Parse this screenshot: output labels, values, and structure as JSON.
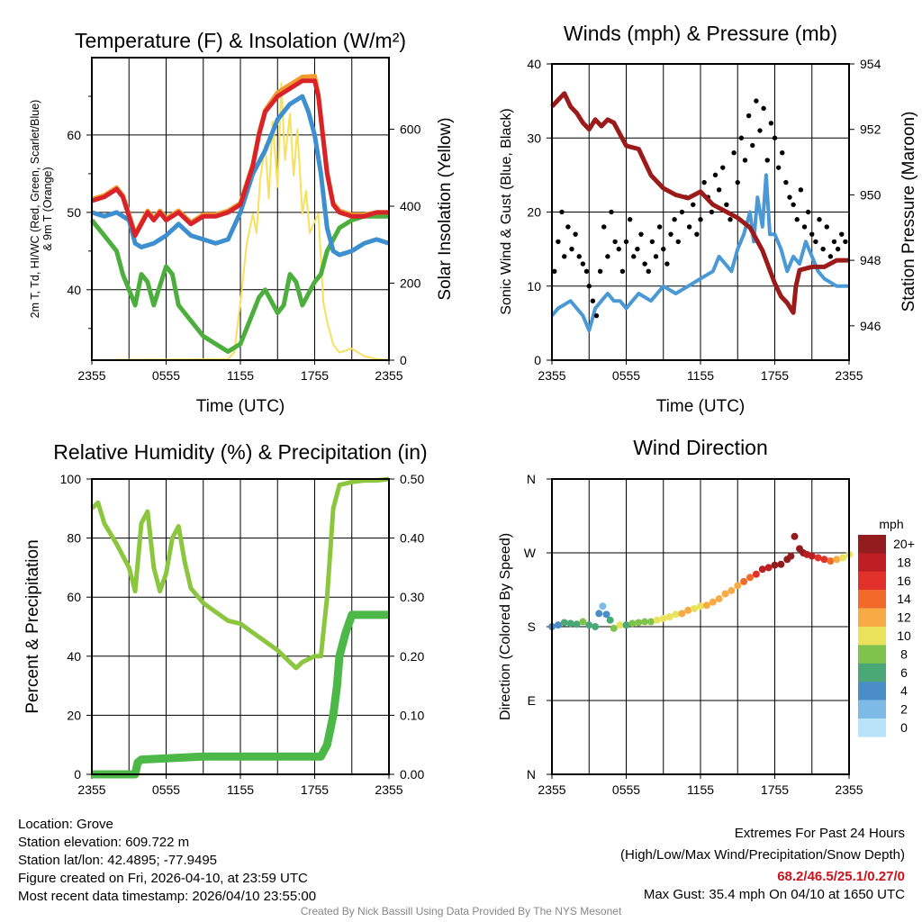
{
  "chart_data": [
    {
      "type": "line",
      "title": "Temperature (F) & Insolation (W/m²)",
      "xlabel": "Time (UTC)",
      "ylabel": "2m T, Td, HI/WC (Red, Green, Scarlet/Blue) & 9m T (Orange)",
      "ylabel_line1": "2m T, T",
      "ylabel_sub": "d",
      "ylabel_line1b": ", HI/WC (Red, Green, Scarlet/Blue)",
      "ylabel_line2": "& 9m T (Orange)",
      "y2label": "Solar Insolation (Yellow)",
      "ylim": [
        30.9,
        70
      ],
      "y2lim": [
        0,
        786
      ],
      "xticks": [
        "2355",
        "0555",
        "1155",
        "1755",
        "2355"
      ],
      "yticks": [
        40,
        50,
        60
      ],
      "y2ticks": [
        0,
        200,
        400,
        600
      ],
      "series": [
        {
          "name": "Solar Insolation",
          "axis": "right",
          "color": "#f7e05a",
          "x": [
            0,
            11,
            11.5,
            12,
            12.5,
            13,
            13.3,
            13.6,
            14,
            14.3,
            14.6,
            15,
            15.3,
            15.6,
            16,
            16.3,
            16.6,
            17,
            17.3,
            17.6,
            18,
            18.3,
            18.7,
            19,
            19.5,
            20,
            21,
            22,
            23,
            24
          ],
          "y": [
            0,
            3,
            20,
            150,
            300,
            380,
            330,
            470,
            560,
            420,
            620,
            450,
            720,
            520,
            640,
            480,
            600,
            380,
            440,
            330,
            360,
            380,
            150,
            100,
            40,
            20,
            30,
            10,
            3,
            0
          ]
        },
        {
          "name": "Dew Point",
          "axis": "left",
          "color": "#4cae3c",
          "x": [
            0,
            1,
            2,
            2.5,
            3,
            3.5,
            4,
            4.5,
            5,
            5.5,
            6,
            6.5,
            7,
            8,
            9,
            10,
            11,
            11.5,
            12,
            13,
            13.5,
            14,
            15,
            15.5,
            16,
            16.5,
            17,
            18,
            18.5,
            19,
            20,
            21,
            22,
            23,
            24
          ],
          "y": [
            49,
            47,
            45,
            42,
            40,
            38,
            42,
            41,
            38,
            40.5,
            43,
            42,
            38,
            36,
            34,
            33,
            32,
            32.5,
            33,
            37,
            39,
            40,
            37,
            38,
            42,
            41,
            38,
            41,
            42,
            45,
            48,
            49,
            49.5,
            49.5,
            49.5
          ]
        },
        {
          "name": "9m Temperature",
          "axis": "left",
          "color": "#f39a2c",
          "x": [
            0,
            1,
            1.5,
            2,
            2.5,
            3,
            3.5,
            4,
            4.5,
            5,
            5.5,
            6,
            7,
            8,
            9,
            10,
            11,
            12,
            13,
            13.5,
            14,
            15,
            16,
            17,
            18,
            18.3,
            19,
            19.5,
            20,
            21,
            22,
            23,
            24
          ],
          "y": [
            51.7,
            52.2,
            52.7,
            53.2,
            52.2,
            49.7,
            47.2,
            48.7,
            50.2,
            49.2,
            50.2,
            49.2,
            50.2,
            48.7,
            49.7,
            49.7,
            50.2,
            51.2,
            56.2,
            60.2,
            63.2,
            65.5,
            66.5,
            67.5,
            67.6,
            65.2,
            55.2,
            51.2,
            50.2,
            49.7,
            49.7,
            50,
            50
          ]
        },
        {
          "name": "Heat Index/Wind Chill",
          "axis": "left",
          "color": "#3d8fd0",
          "x": [
            0,
            1,
            2,
            3,
            3.5,
            4,
            5,
            6,
            7,
            8,
            9,
            10,
            11,
            12,
            13,
            14,
            15,
            16,
            17,
            17.5,
            18,
            18.5,
            19,
            19.5,
            20,
            21,
            22,
            23,
            24
          ],
          "y": [
            50,
            49.5,
            50,
            49,
            46,
            45.5,
            46,
            47,
            48.5,
            47,
            46.5,
            46,
            46.5,
            50,
            55,
            58,
            62,
            64,
            65,
            63,
            60,
            55,
            48,
            45,
            44.5,
            45,
            46,
            46.5,
            46
          ]
        },
        {
          "name": "2m Temperature",
          "axis": "left",
          "color": "#d8232a",
          "x": [
            0,
            1,
            1.5,
            2,
            2.5,
            3,
            3.5,
            4,
            4.5,
            5,
            5.5,
            6,
            7,
            8,
            9,
            10,
            11,
            12,
            13,
            13.5,
            14,
            15,
            16,
            17,
            18,
            18.3,
            19,
            19.5,
            20,
            21,
            22,
            23,
            24
          ],
          "y": [
            51.5,
            52,
            52.5,
            53,
            52,
            49.5,
            47,
            48.5,
            50,
            49,
            50,
            49,
            50,
            48.5,
            49.5,
            49.5,
            50,
            51,
            56,
            60,
            63,
            65,
            66,
            67,
            67,
            65,
            55,
            51,
            50,
            49.5,
            49.5,
            50,
            50
          ]
        }
      ]
    },
    {
      "type": "line",
      "title": "Winds (mph) & Pressure (mb)",
      "xlabel": "Time (UTC)",
      "ylabel": "Sonic Wind & Gust (Blue, Black)",
      "y2label": "Station Pressure (Maroon)",
      "ylim": [
        0,
        40
      ],
      "y2lim": [
        944.95,
        954
      ],
      "xticks": [
        "2355",
        "0555",
        "1155",
        "1755",
        "2355"
      ],
      "yticks": [
        0,
        10,
        20,
        30,
        40
      ],
      "y2ticks": [
        946,
        948,
        950,
        952,
        954
      ],
      "series": [
        {
          "name": "Sonic Wind",
          "axis": "left",
          "color": "#4a98d4",
          "x": [
            0,
            0.5,
            1,
            1.5,
            2,
            2.5,
            3,
            3.5,
            4,
            4.5,
            5,
            5.5,
            6,
            6.5,
            7,
            8,
            9,
            10,
            11,
            12,
            13,
            13.5,
            14,
            14.5,
            15,
            15.5,
            16,
            16.3,
            16.6,
            17,
            17.3,
            17.6,
            18,
            18.5,
            19,
            19.5,
            20,
            20.5,
            21,
            21.5,
            22,
            23,
            24
          ],
          "y": [
            6,
            7,
            7.5,
            8,
            7,
            6,
            4,
            7,
            8,
            9,
            8,
            8,
            7,
            8,
            9,
            8,
            10,
            9,
            10,
            11,
            12,
            14,
            13,
            12,
            15,
            17,
            20,
            16,
            22,
            18,
            25,
            17,
            17,
            15,
            12,
            14,
            13,
            16,
            14,
            12,
            11,
            10,
            10
          ]
        },
        {
          "name": "Station Pressure",
          "axis": "right",
          "color": "#9b1b1b",
          "x": [
            0,
            0.5,
            1,
            1.5,
            2,
            2.5,
            3,
            3.5,
            4,
            4.5,
            5,
            6,
            7,
            8,
            9,
            10,
            11,
            12,
            13,
            14,
            15,
            16,
            17,
            18,
            18.5,
            19,
            19.5,
            19.7,
            20,
            21,
            22,
            23,
            24
          ],
          "y": [
            952.7,
            952.9,
            953.1,
            952.7,
            952.5,
            952.2,
            952,
            952.3,
            952.1,
            952.3,
            952.2,
            951.5,
            951.4,
            950.6,
            950.2,
            950,
            949.9,
            950.1,
            949.7,
            949.5,
            949.3,
            949,
            948.3,
            947.3,
            946.9,
            946.7,
            946.4,
            947.2,
            947.7,
            947.8,
            947.8,
            948,
            948
          ]
        }
      ],
      "gust_points": {
        "name": "Gust",
        "color": "#000000",
        "x": [
          0.2,
          0.5,
          0.8,
          1,
          1.3,
          1.6,
          1.9,
          2.2,
          2.5,
          2.8,
          3,
          3.3,
          3.6,
          3.9,
          4.2,
          4.5,
          4.8,
          5.1,
          5.4,
          5.7,
          6,
          6.3,
          6.6,
          6.9,
          7.2,
          7.5,
          7.8,
          8.1,
          8.4,
          8.7,
          9,
          9.3,
          9.6,
          9.9,
          10.2,
          10.5,
          10.8,
          11.1,
          11.4,
          11.7,
          12,
          12.3,
          12.6,
          12.9,
          13.2,
          13.5,
          13.8,
          14.1,
          14.4,
          14.7,
          15,
          15.3,
          15.6,
          15.9,
          16.2,
          16.5,
          16.8,
          17.1,
          17.4,
          17.7,
          18,
          18.3,
          18.6,
          18.9,
          19.2,
          19.5,
          19.8,
          20.1,
          20.4,
          20.7,
          21,
          21.3,
          21.6,
          21.9,
          22.2,
          22.5,
          22.8,
          23.1,
          23.4,
          23.7
        ],
        "y": [
          12,
          16,
          20,
          14,
          18,
          15,
          17,
          14,
          13,
          12,
          10,
          8,
          6,
          12,
          18,
          14,
          20,
          16,
          15,
          12,
          16,
          19,
          14,
          15,
          17,
          13,
          12,
          16,
          14,
          18,
          15,
          13,
          17,
          19,
          16,
          20,
          22,
          18,
          21,
          17,
          19,
          24,
          22,
          20,
          25,
          23,
          26,
          21,
          19,
          28,
          24,
          30,
          27,
          33,
          29,
          35,
          31,
          34,
          27,
          32,
          30,
          26,
          28,
          24,
          22,
          21,
          19,
          23,
          18,
          20,
          17,
          16,
          19,
          15,
          18,
          14,
          16,
          15,
          17,
          16
        ]
      }
    },
    {
      "type": "line",
      "title": "Relative Humidity (%) & Precipitation (in)",
      "xlabel": "",
      "ylabel": "Percent & Precipitation",
      "ylim": [
        0,
        100
      ],
      "y2lim": [
        0,
        0.5
      ],
      "xticks": [
        "2355",
        "0555",
        "1155",
        "1755",
        "2355"
      ],
      "yticks": [
        0,
        20,
        40,
        60,
        80,
        100
      ],
      "y2ticks": [
        "0.00",
        "0.10",
        "0.20",
        "0.30",
        "0.40",
        "0.50"
      ],
      "series": [
        {
          "name": "Relative Humidity",
          "axis": "left",
          "color": "#8cc63f",
          "x": [
            0,
            0.5,
            1,
            2,
            3,
            3.5,
            4,
            4.5,
            5,
            5.5,
            6,
            6.5,
            7,
            7.5,
            8,
            9,
            10,
            11,
            12,
            13,
            14,
            15,
            16,
            16.5,
            17,
            18,
            18.5,
            19,
            19.5,
            20,
            21,
            22,
            23,
            24
          ],
          "y": [
            90,
            92,
            85,
            78,
            70,
            62,
            85,
            89,
            70,
            62,
            68,
            80,
            84,
            72,
            63,
            58,
            55,
            52,
            51,
            48,
            45,
            42,
            38,
            36,
            38,
            40,
            40,
            60,
            90,
            98,
            99,
            99.5,
            99.5,
            100
          ]
        },
        {
          "name": "Precipitation",
          "axis": "right",
          "color": "#4cb848",
          "x": [
            0,
            3.5,
            3.7,
            4,
            6,
            9,
            18.5,
            19,
            19.5,
            19.8,
            20,
            20.5,
            21,
            24
          ],
          "y": [
            0,
            0,
            0.02,
            0.025,
            0.027,
            0.03,
            0.03,
            0.05,
            0.1,
            0.15,
            0.2,
            0.24,
            0.27,
            0.27
          ]
        }
      ]
    },
    {
      "type": "scatter",
      "title": "Wind Direction",
      "ylabel": "Direction (Colored By Speed)",
      "xticks": [
        "2355",
        "0555",
        "1155",
        "1755",
        "2355"
      ],
      "yticks": [
        {
          "label": "N",
          "deg": 0
        },
        {
          "label": "E",
          "deg": 90
        },
        {
          "label": "S",
          "deg": 180
        },
        {
          "label": "W",
          "deg": 270
        },
        {
          "label": "N",
          "deg": 360
        }
      ],
      "points": {
        "x": [
          0,
          0.5,
          1,
          1.5,
          2,
          2.5,
          3,
          3.5,
          3.8,
          4.1,
          4.4,
          4.7,
          5,
          5.5,
          6,
          6.5,
          7,
          7.5,
          8,
          8.5,
          9,
          9.5,
          10,
          10.5,
          11,
          11.5,
          12,
          12.5,
          13,
          13.5,
          14,
          14.5,
          15,
          15.5,
          16,
          16.5,
          17,
          17.5,
          18,
          18.5,
          19,
          19.3,
          19.6,
          20,
          20.3,
          20.6,
          21,
          21.5,
          22,
          22.5,
          23,
          23.5,
          24
        ],
        "deg": [
          180,
          182,
          185,
          184,
          183,
          186,
          182,
          180,
          196,
          205,
          195,
          188,
          178,
          182,
          182,
          184,
          185,
          186,
          186,
          188,
          190,
          192,
          195,
          196,
          200,
          202,
          205,
          206,
          210,
          214,
          220,
          224,
          230,
          235,
          240,
          244,
          250,
          252,
          255,
          256,
          262,
          266,
          290,
          275,
          270,
          268,
          266,
          264,
          262,
          260,
          262,
          264,
          268
        ],
        "speed": [
          3,
          4,
          5,
          6,
          5,
          7,
          6,
          5,
          3,
          2,
          4,
          6,
          8,
          9,
          6,
          7,
          7,
          8,
          8,
          9,
          9,
          10,
          10,
          11,
          11,
          10,
          10,
          11,
          12,
          11,
          11,
          12,
          12,
          13,
          14,
          15,
          18,
          17,
          20,
          20,
          20,
          20,
          20,
          20,
          19,
          18,
          18,
          16,
          15,
          13,
          11,
          10,
          9
        ]
      },
      "colorbar": {
        "title": "mph",
        "labels": [
          "20+",
          "18",
          "16",
          "14",
          "12",
          "10",
          "8",
          "6",
          "4",
          "2",
          "0"
        ],
        "colors": [
          "#931c1e",
          "#bd1e24",
          "#e0322a",
          "#f26a2a",
          "#f8ab45",
          "#e9e25a",
          "#7fc24c",
          "#49a875",
          "#4a8dc7",
          "#7dbbe6",
          "#b9e3f8"
        ]
      }
    }
  ],
  "footer": {
    "location": "Location: Grove",
    "elevation": "Station elevation: 609.722 m",
    "latlon": "Station lat/lon: 42.4895; -77.9495",
    "created": "Figure created on Fri, 2026-04-10, at 23:59 UTC",
    "recent": "Most recent data timestamp: 2026/04/10 23:55:00",
    "extremes_title": "Extremes For Past 24 Hours",
    "extremes_sub": "(High/Low/Max Wind/Precipitation/Snow Depth)",
    "extremes_values": "68.2/46.5/25.1/0.27/0",
    "max_gust": "Max Gust: 35.4 mph On 04/10 at 1650 UTC",
    "credit": "Created By Nick Bassill Using Data Provided By The NYS Mesonet"
  }
}
